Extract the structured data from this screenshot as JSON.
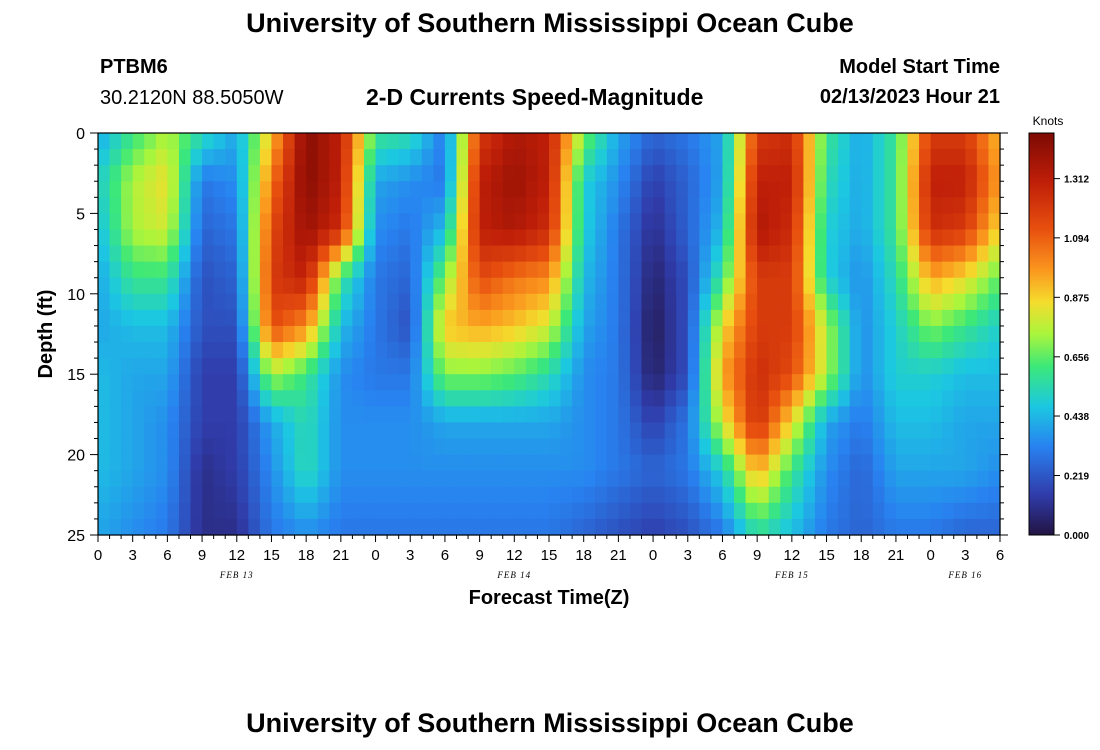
{
  "header": {
    "title": "University of Southern Mississippi Ocean Cube",
    "station": "PTBM6",
    "coordinates": "30.2120N  88.5050W",
    "subtitle": "2-D Currents Speed-Magnitude",
    "model_start_label": "Model Start Time",
    "model_start_value": "02/13/2023 Hour 21"
  },
  "footer": {
    "title": "University of Southern Mississippi Ocean Cube"
  },
  "chart_data": {
    "type": "heatmap",
    "title": "2-D Currents Speed-Magnitude",
    "xlabel": "Forecast Time(Z)",
    "ylabel": "Depth (ft)",
    "x_range_hours": [
      0,
      78
    ],
    "y_range": [
      0,
      25
    ],
    "y_ticks": [
      0,
      5,
      10,
      15,
      20,
      25
    ],
    "x_tick_labels": [
      "0",
      "3",
      "6",
      "9",
      "12",
      "15",
      "18",
      "21",
      "0",
      "3",
      "6",
      "9",
      "12",
      "15",
      "18",
      "21",
      "0",
      "3",
      "6",
      "9",
      "12",
      "15",
      "18",
      "21",
      "0",
      "3",
      "6"
    ],
    "day_labels": [
      {
        "label": "FEB 13",
        "hour": 12
      },
      {
        "label": "FEB 14",
        "hour": 36
      },
      {
        "label": "FEB 15",
        "hour": 60
      },
      {
        "label": "FEB 16",
        "hour": 75
      }
    ],
    "colorbar": {
      "label": "Knots",
      "min": 0.0,
      "max": 1.48,
      "ticks": [
        "0.000",
        "0.219",
        "0.438",
        "0.656",
        "0.875",
        "1.094",
        "1.312"
      ]
    },
    "time_grid_hours": [
      0,
      3,
      6,
      9,
      12,
      15,
      18,
      21,
      24,
      27,
      30,
      33,
      36,
      39,
      42,
      45,
      48,
      51,
      54,
      57,
      60,
      63,
      66,
      69,
      72,
      75,
      78
    ],
    "depth_grid_ft": [
      0,
      3,
      6,
      9,
      12,
      15,
      18,
      21,
      25
    ],
    "speed_knots": [
      [
        0.4,
        0.6,
        0.75,
        0.55,
        0.4,
        0.9,
        1.45,
        1.3,
        0.6,
        0.55,
        0.3,
        1.2,
        1.35,
        1.3,
        0.7,
        0.4,
        0.25,
        0.3,
        0.4,
        1.2,
        1.25,
        0.6,
        0.4,
        0.6,
        1.2,
        1.2,
        0.9
      ],
      [
        0.5,
        0.75,
        0.85,
        0.3,
        0.35,
        1.05,
        1.45,
        1.3,
        0.4,
        0.35,
        0.3,
        1.3,
        1.4,
        1.3,
        0.5,
        0.35,
        0.15,
        0.25,
        0.4,
        1.3,
        1.3,
        0.55,
        0.4,
        0.6,
        1.3,
        1.3,
        0.95
      ],
      [
        0.45,
        0.75,
        0.8,
        0.25,
        0.3,
        1.15,
        1.4,
        1.25,
        0.35,
        0.3,
        0.45,
        1.3,
        1.35,
        1.25,
        0.5,
        0.3,
        0.1,
        0.25,
        0.45,
        1.35,
        1.25,
        0.5,
        0.4,
        0.6,
        1.25,
        1.2,
        0.85
      ],
      [
        0.4,
        0.6,
        0.6,
        0.2,
        0.25,
        1.2,
        1.3,
        0.6,
        0.3,
        0.25,
        0.7,
        1.15,
        1.05,
        1.0,
        0.45,
        0.3,
        0.06,
        0.2,
        0.6,
        1.2,
        1.2,
        0.5,
        0.35,
        0.55,
        0.95,
        0.85,
        0.65
      ],
      [
        0.4,
        0.45,
        0.45,
        0.2,
        0.2,
        1.15,
        1.0,
        0.45,
        0.3,
        0.2,
        0.9,
        0.95,
        0.9,
        0.8,
        0.4,
        0.3,
        0.03,
        0.2,
        0.85,
        1.2,
        1.2,
        0.75,
        0.35,
        0.5,
        0.7,
        0.6,
        0.5
      ],
      [
        0.45,
        0.4,
        0.4,
        0.15,
        0.15,
        0.75,
        0.6,
        0.35,
        0.3,
        0.3,
        0.7,
        0.7,
        0.65,
        0.55,
        0.35,
        0.3,
        0.05,
        0.2,
        0.95,
        1.25,
        1.15,
        0.75,
        0.35,
        0.5,
        0.5,
        0.45,
        0.45
      ],
      [
        0.45,
        0.4,
        0.35,
        0.15,
        0.15,
        0.4,
        0.55,
        0.35,
        0.35,
        0.35,
        0.4,
        0.4,
        0.4,
        0.4,
        0.35,
        0.3,
        0.15,
        0.3,
        0.8,
        1.25,
        0.85,
        0.4,
        0.3,
        0.45,
        0.45,
        0.4,
        0.4
      ],
      [
        0.45,
        0.4,
        0.35,
        0.1,
        0.15,
        0.35,
        0.55,
        0.35,
        0.35,
        0.35,
        0.35,
        0.35,
        0.35,
        0.35,
        0.35,
        0.3,
        0.25,
        0.3,
        0.5,
        0.95,
        0.6,
        0.35,
        0.25,
        0.4,
        0.4,
        0.4,
        0.35
      ],
      [
        0.4,
        0.35,
        0.3,
        0.1,
        0.1,
        0.3,
        0.35,
        0.3,
        0.3,
        0.3,
        0.3,
        0.3,
        0.3,
        0.3,
        0.25,
        0.2,
        0.15,
        0.2,
        0.3,
        0.55,
        0.45,
        0.3,
        0.25,
        0.3,
        0.3,
        0.25,
        0.25
      ]
    ]
  }
}
